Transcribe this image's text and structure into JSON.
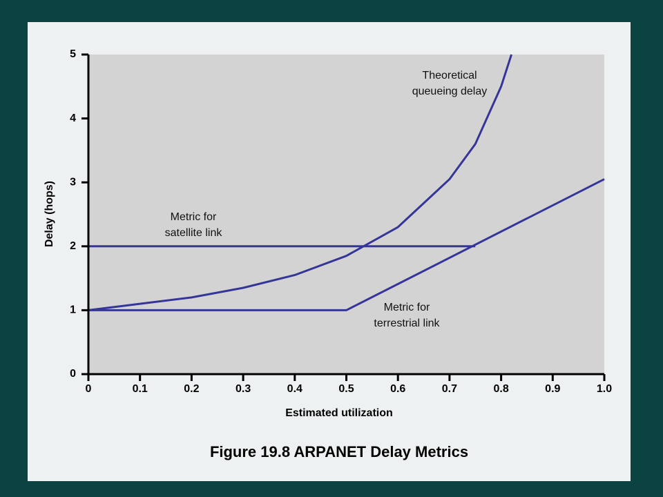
{
  "chart_data": {
    "type": "line",
    "title": "Figure 19.8  ARPANET Delay Metrics",
    "xlabel": "Estimated utilization",
    "ylabel": "Delay (hops)",
    "xlim": [
      0,
      1
    ],
    "ylim": [
      0,
      5
    ],
    "xticks": [
      0,
      0.1,
      0.2,
      0.3,
      0.4,
      0.5,
      0.6,
      0.7,
      0.8,
      0.9,
      {
        "value": 1,
        "label": "1.0"
      }
    ],
    "yticks": [
      0,
      1,
      2,
      3,
      4,
      5
    ],
    "series": [
      {
        "name": "Theoretical queueing delay",
        "color": "#353598",
        "x": [
          0,
          0.1,
          0.2,
          0.3,
          0.4,
          0.5,
          0.6,
          0.7,
          0.75,
          0.8,
          0.82
        ],
        "values": [
          1.0,
          1.1,
          1.2,
          1.35,
          1.55,
          1.85,
          2.3,
          3.05,
          3.6,
          4.5,
          5.0
        ]
      },
      {
        "name": "Metric for satellite link",
        "color": "#353598",
        "x": [
          0,
          0.75
        ],
        "values": [
          2,
          2
        ]
      },
      {
        "name": "Metric for terrestrial link",
        "color": "#353598",
        "x": [
          0,
          0.5,
          1.0
        ],
        "values": [
          1,
          1,
          3.05
        ]
      }
    ],
    "annotations": [
      {
        "lines": [
          "Theoretical",
          "queueing delay"
        ]
      },
      {
        "lines": [
          "Metric for",
          "satellite link"
        ]
      },
      {
        "lines": [
          "Metric for",
          "terrestrial link"
        ]
      }
    ]
  }
}
